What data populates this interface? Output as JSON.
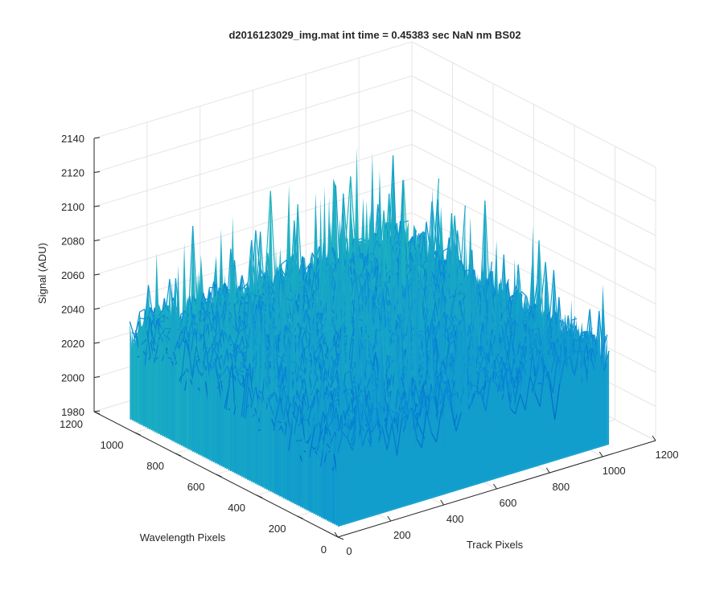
{
  "chart_data": {
    "type": "surface",
    "title": "d2016123029_img.mat int time = 0.45383 sec  NaN nm BS02",
    "xlabel": "Track Pixels",
    "ylabel": "Wavelength Pixels",
    "zlabel": "Signal (ADU)",
    "xlim": [
      0,
      1200
    ],
    "ylim": [
      0,
      1200
    ],
    "zlim": [
      1980,
      2140
    ],
    "x_ticks": [
      0,
      200,
      400,
      600,
      800,
      1000,
      1200
    ],
    "y_ticks": [
      0,
      200,
      400,
      600,
      800,
      1000,
      1200
    ],
    "z_ticks": [
      1980,
      2000,
      2020,
      2040,
      2060,
      2080,
      2100,
      2120,
      2140
    ],
    "x_tick_labels": [
      "0",
      "200",
      "400",
      "600",
      "800",
      "1000",
      "1200"
    ],
    "y_tick_labels": [
      "0",
      "200",
      "400",
      "600",
      "800",
      "1000",
      "1200"
    ],
    "z_tick_labels": [
      "1980",
      "2000",
      "2020",
      "2040",
      "2060",
      "2080",
      "2100",
      "2120",
      "2140"
    ],
    "data_extent": {
      "x": [
        0,
        1024
      ],
      "y": [
        0,
        1024
      ]
    },
    "signal_mean": 2030,
    "signal_range": [
      1990,
      2132
    ],
    "grid": true,
    "colormap": "parula",
    "colors": {
      "low": "#0072bd",
      "mid_low": "#1a9bd7",
      "mid": "#33b7a0",
      "mid_high": "#8dc46a",
      "high": "#e5c63c",
      "axis": "#262626",
      "grid": "#e5e5e5"
    }
  }
}
